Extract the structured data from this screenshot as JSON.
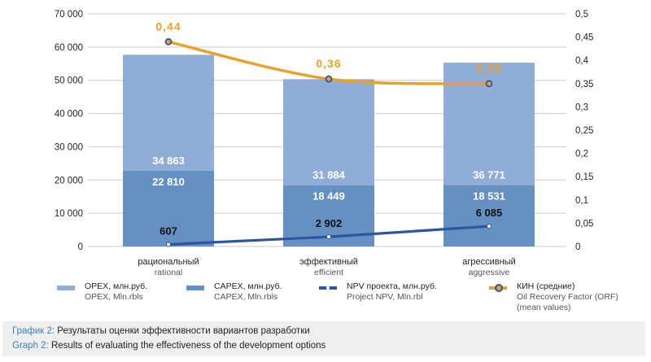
{
  "chart_data": {
    "type": "bar",
    "stacked": true,
    "categories": [
      {
        "ru": "рациональный",
        "en": "rational"
      },
      {
        "ru": "эффективный",
        "en": "efficient"
      },
      {
        "ru": "агрессивный",
        "en": "aggressive"
      }
    ],
    "series": [
      {
        "name": "CAPEX, млн.руб.",
        "name_en": "CAPEX, Mln.rbls",
        "type": "bar",
        "axis": "left",
        "color": "#6590c2",
        "values": [
          22810,
          18449,
          18531
        ],
        "labels": [
          "22 810",
          "18 449",
          "18 531"
        ]
      },
      {
        "name": "OPEX, млн.руб.",
        "name_en": "OPEX, Mln.rbls",
        "type": "bar",
        "axis": "left",
        "color": "#8fadd6",
        "values": [
          34863,
          31884,
          36771
        ],
        "labels": [
          "34 863",
          "31 884",
          "36 771"
        ]
      },
      {
        "name": "NPV проекта, млн.руб.",
        "name_en": "Project NPV, Mln.rbl",
        "type": "line",
        "axis": "left",
        "color": "#2d56a0",
        "values": [
          607,
          2902,
          6085
        ],
        "labels": [
          "607",
          "2 902",
          "6 085"
        ]
      },
      {
        "name": "КИН (средние)",
        "name_en": "Oil Recovery Factor (ORF)",
        "name_en_2": "(mean values)",
        "type": "line",
        "axis": "right",
        "color": "#e8a12a",
        "values": [
          0.44,
          0.36,
          0.35
        ],
        "labels": [
          "0,44",
          "0,36",
          "0,35"
        ]
      }
    ],
    "y_left": {
      "min": 0,
      "max": 70000,
      "ticks": [
        0,
        10000,
        20000,
        30000,
        40000,
        50000,
        60000,
        70000
      ],
      "tick_labels": [
        "0",
        "10 000",
        "20 000",
        "30 000",
        "40 000",
        "50 000",
        "60 000",
        "70 000"
      ]
    },
    "y_right": {
      "min": 0,
      "max": 0.5,
      "ticks": [
        0,
        0.05,
        0.1,
        0.15,
        0.2,
        0.25,
        0.3,
        0.35,
        0.4,
        0.45,
        0.5
      ],
      "tick_labels": [
        "0",
        "0,05",
        "0,1",
        "0,15",
        "0,2",
        "0,25",
        "0,3",
        "0,35",
        "0,4",
        "0,45",
        "0,5"
      ]
    },
    "grid": true,
    "legend_position": "bottom"
  },
  "legend": [
    {
      "ru": "OPEX, млн.руб.",
      "en": "OPEX, Mln.rbls"
    },
    {
      "ru": "CAPEX, млн.руб.",
      "en": "CAPEX, Mln.rbls"
    },
    {
      "ru": "NPV проекта, млн.руб.",
      "en": "Project NPV, Mln.rbl"
    },
    {
      "ru": "КИН (средние)",
      "en": "Oil Recovery Factor (ORF)",
      "en2": "(mean values)"
    }
  ],
  "caption": {
    "ru_label": "График 2:",
    "ru_text": " Результаты оценки эффективности вариантов разработки",
    "en_label": "Graph 2:",
    "en_text": " Results of evaluating the effectiveness of the development options"
  }
}
